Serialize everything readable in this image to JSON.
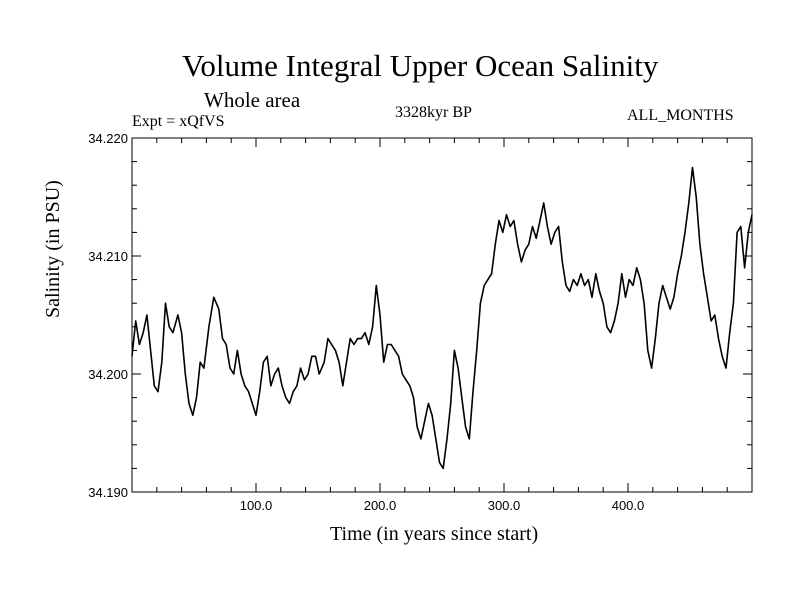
{
  "chart_data": {
    "type": "line",
    "title": "Volume Integral Upper Ocean Salinity",
    "subtitle": "Whole area",
    "experiment": "Expt = xQfVS",
    "period": "3328kyr BP",
    "months": "ALL_MONTHS",
    "xlabel": "Time (in years since start)",
    "ylabel": "Salinity (in PSU)",
    "xlim": [
      0,
      500
    ],
    "ylim": [
      34.19,
      34.22
    ],
    "x_ticks": [
      100,
      200,
      300,
      400
    ],
    "x_tick_labels": [
      "100.0",
      "200.0",
      "300.0",
      "400.0"
    ],
    "y_ticks": [
      34.19,
      34.2,
      34.21,
      34.22
    ],
    "y_tick_labels": [
      "34.190",
      "34.200",
      "34.210",
      "34.220"
    ],
    "series": [
      {
        "name": "Salinity",
        "x": [
          0,
          3,
          6,
          9,
          12,
          15,
          18,
          21,
          24,
          27,
          30,
          33,
          37,
          40,
          43,
          46,
          49,
          52,
          55,
          58,
          62,
          66,
          70,
          73,
          76,
          79,
          82,
          85,
          88,
          91,
          94,
          97,
          100,
          103,
          106,
          109,
          112,
          115,
          118,
          121,
          124,
          127,
          130,
          133,
          136,
          139,
          142,
          145,
          148,
          151,
          155,
          158,
          161,
          164,
          167,
          170,
          173,
          176,
          179,
          182,
          185,
          188,
          191,
          194,
          197,
          200,
          203,
          206,
          209,
          212,
          215,
          218,
          221,
          224,
          227,
          230,
          233,
          236,
          239,
          242,
          245,
          248,
          251,
          254,
          257,
          260,
          263,
          266,
          269,
          272,
          275,
          278,
          281,
          284,
          287,
          290,
          293,
          296,
          299,
          302,
          305,
          308,
          311,
          314,
          317,
          320,
          323,
          326,
          329,
          332,
          335,
          338,
          341,
          344,
          347,
          350,
          353,
          356,
          359,
          362,
          365,
          368,
          371,
          374,
          377,
          380,
          383,
          386,
          389,
          392,
          395,
          398,
          401,
          404,
          407,
          410,
          413,
          416,
          419,
          422,
          425,
          428,
          431,
          434,
          437,
          440,
          443,
          446,
          449,
          452,
          455,
          458,
          461,
          464,
          467,
          470,
          473,
          476,
          479,
          482,
          485,
          488,
          491,
          494,
          497,
          500
        ],
        "values": [
          34.2015,
          34.2045,
          34.2025,
          34.2035,
          34.205,
          34.202,
          34.199,
          34.1985,
          34.201,
          34.206,
          34.204,
          34.2035,
          34.205,
          34.2035,
          34.2,
          34.1975,
          34.1965,
          34.198,
          34.201,
          34.2005,
          34.204,
          34.2065,
          34.2055,
          34.203,
          34.2025,
          34.2005,
          34.2,
          34.202,
          34.2,
          34.199,
          34.1985,
          34.1975,
          34.1965,
          34.1985,
          34.201,
          34.2015,
          34.199,
          34.2,
          34.2005,
          34.199,
          34.198,
          34.1975,
          34.1985,
          34.199,
          34.2005,
          34.1995,
          34.2,
          34.2015,
          34.2015,
          34.2,
          34.201,
          34.203,
          34.2025,
          34.202,
          34.201,
          34.199,
          34.201,
          34.203,
          34.2025,
          34.203,
          34.203,
          34.2035,
          34.2025,
          34.204,
          34.2075,
          34.205,
          34.201,
          34.2025,
          34.2025,
          34.202,
          34.2015,
          34.2,
          34.1995,
          34.199,
          34.198,
          34.1955,
          34.1945,
          34.196,
          34.1975,
          34.1965,
          34.1945,
          34.1925,
          34.192,
          34.1945,
          34.1975,
          34.202,
          34.2005,
          34.198,
          34.1955,
          34.1945,
          34.1985,
          34.202,
          34.206,
          34.2075,
          34.208,
          34.2085,
          34.211,
          34.213,
          34.212,
          34.2135,
          34.2125,
          34.213,
          34.211,
          34.2095,
          34.2105,
          34.211,
          34.2125,
          34.2115,
          34.213,
          34.2145,
          34.2125,
          34.211,
          34.212,
          34.2125,
          34.2095,
          34.2075,
          34.207,
          34.208,
          34.2075,
          34.2085,
          34.2075,
          34.208,
          34.2065,
          34.2085,
          34.207,
          34.206,
          34.204,
          34.2035,
          34.2045,
          34.206,
          34.2085,
          34.2065,
          34.208,
          34.2075,
          34.209,
          34.208,
          34.206,
          34.202,
          34.2005,
          34.203,
          34.206,
          34.2075,
          34.2065,
          34.2055,
          34.2065,
          34.2085,
          34.21,
          34.212,
          34.2145,
          34.2175,
          34.215,
          34.211,
          34.2085,
          34.2065,
          34.2045,
          34.205,
          34.203,
          34.2015,
          34.2005,
          34.2035,
          34.206,
          34.212,
          34.2125,
          34.209,
          34.212,
          34.2135
        ]
      }
    ]
  }
}
